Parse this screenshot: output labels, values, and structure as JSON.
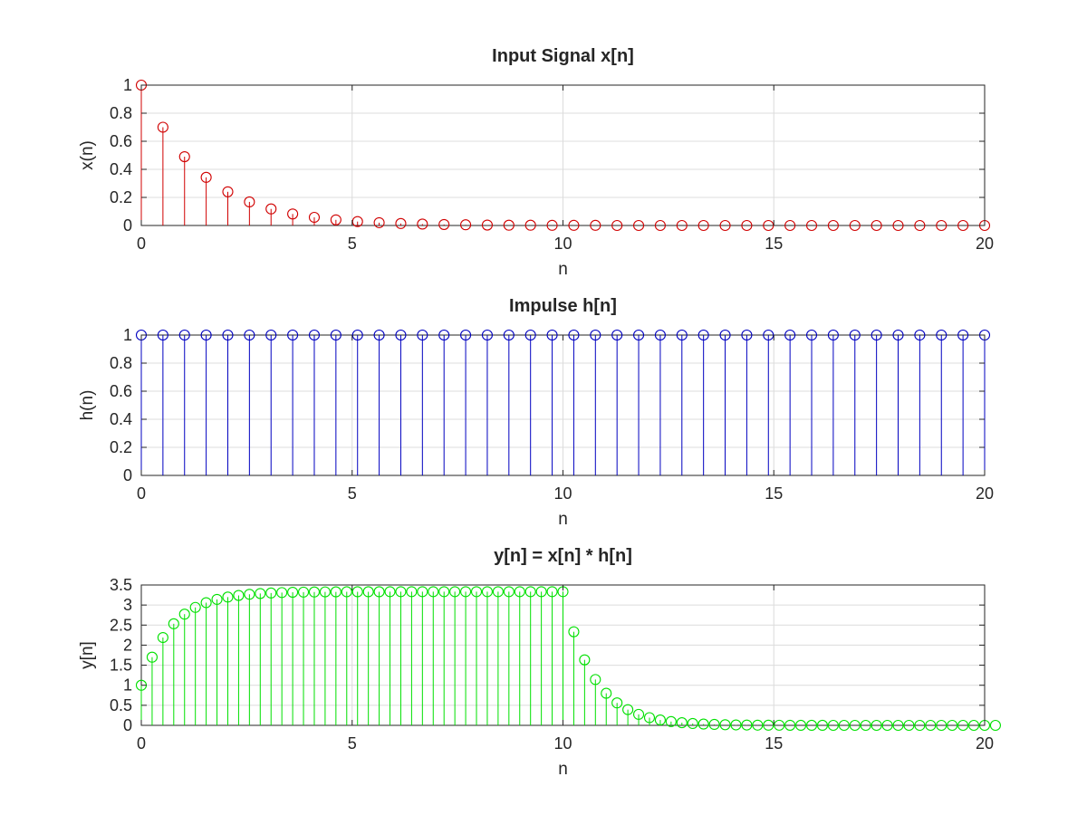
{
  "figure": {
    "background": "#ffffff",
    "axis_color": "#262626",
    "grid_color": "#dcdcdc"
  },
  "chart_data": [
    {
      "type": "stem",
      "title": "Input Signal x[n]",
      "xlabel": "n",
      "ylabel": "x(n)",
      "xlim": [
        0,
        20
      ],
      "ylim": [
        0,
        1
      ],
      "grid": true,
      "color": "#d00000",
      "marker": "circle",
      "x_ticks": [
        0,
        5,
        10,
        15,
        20
      ],
      "y_ticks": [
        0,
        0.2,
        0.4,
        0.6,
        0.8,
        1
      ],
      "x_tick_labels": [
        "0",
        "5",
        "10",
        "15",
        "20"
      ],
      "y_tick_labels": [
        "0",
        "0.2",
        "0.4",
        "0.6",
        "0.8",
        "1"
      ],
      "x_start": 0,
      "x_step": 0.51282,
      "values": [
        1,
        0.7,
        0.49,
        0.343,
        0.24,
        0.168,
        0.118,
        0.082,
        0.058,
        0.04,
        0.028,
        0.02,
        0.014,
        0.01,
        0.007,
        0.005,
        0.003,
        0.002,
        0.002,
        0.001,
        0.001,
        0.001,
        0,
        0,
        0,
        0,
        0,
        0,
        0,
        0,
        0,
        0,
        0,
        0,
        0,
        0,
        0,
        0,
        0,
        0
      ]
    },
    {
      "type": "stem",
      "title": "Impulse h[n]",
      "xlabel": "n",
      "ylabel": "h(n)",
      "xlim": [
        0,
        20
      ],
      "ylim": [
        0,
        1
      ],
      "grid": true,
      "color": "#0000c0",
      "marker": "circle",
      "x_ticks": [
        0,
        5,
        10,
        15,
        20
      ],
      "y_ticks": [
        0,
        0.2,
        0.4,
        0.6,
        0.8,
        1
      ],
      "x_tick_labels": [
        "0",
        "5",
        "10",
        "15",
        "20"
      ],
      "y_tick_labels": [
        "0",
        "0.2",
        "0.4",
        "0.6",
        "0.8",
        "1"
      ],
      "x_start": 0,
      "x_step": 0.51282,
      "values": [
        1,
        1,
        1,
        1,
        1,
        1,
        1,
        1,
        1,
        1,
        1,
        1,
        1,
        1,
        1,
        1,
        1,
        1,
        1,
        1,
        1,
        1,
        1,
        1,
        1,
        1,
        1,
        1,
        1,
        1,
        1,
        1,
        1,
        1,
        1,
        1,
        1,
        1,
        1,
        1
      ]
    },
    {
      "type": "stem",
      "title": "y[n] = x[n] * h[n]",
      "xlabel": "n",
      "ylabel": "y[n]",
      "xlim": [
        0,
        20
      ],
      "ylim": [
        0,
        3.5
      ],
      "grid": true,
      "color": "#00e000",
      "marker": "circle",
      "x_ticks": [
        0,
        5,
        10,
        15,
        20
      ],
      "y_ticks": [
        0,
        0.5,
        1,
        1.5,
        2,
        2.5,
        3,
        3.5
      ],
      "x_tick_labels": [
        "0",
        "5",
        "10",
        "15",
        "20"
      ],
      "y_tick_labels": [
        "0",
        "0.5",
        "1",
        "1.5",
        "2",
        "2.5",
        "3",
        "3.5"
      ],
      "x_start": 0,
      "x_step": 0.25641,
      "values": [
        1,
        1.7,
        2.19,
        2.533,
        2.773,
        2.941,
        3.059,
        3.141,
        3.199,
        3.239,
        3.268,
        3.287,
        3.301,
        3.311,
        3.318,
        3.322,
        3.326,
        3.328,
        3.329,
        3.331,
        3.331,
        3.332,
        3.332,
        3.333,
        3.333,
        3.333,
        3.333,
        3.333,
        3.333,
        3.333,
        3.333,
        3.333,
        3.333,
        3.333,
        3.333,
        3.333,
        3.333,
        3.333,
        3.333,
        3.333,
        2.333,
        1.633,
        1.143,
        0.8,
        0.56,
        0.392,
        0.274,
        0.192,
        0.134,
        0.094,
        0.066,
        0.046,
        0.032,
        0.023,
        0.016,
        0.011,
        0.008,
        0.005,
        0.004,
        0.003,
        0.002,
        0.001,
        0.001,
        0.001,
        0,
        0,
        0,
        0,
        0,
        0,
        0,
        0,
        0,
        0,
        0,
        0,
        0,
        0,
        0,
        0
      ]
    }
  ]
}
